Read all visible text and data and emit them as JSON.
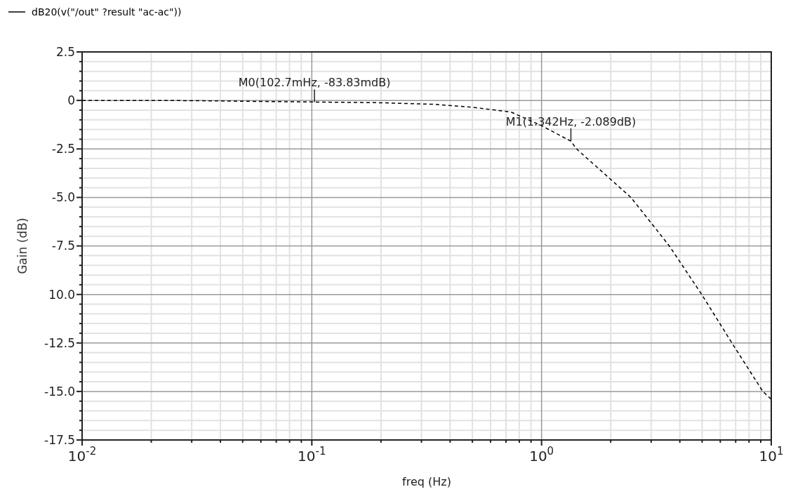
{
  "chart_data": {
    "type": "line",
    "xlabel": "freq (Hz)",
    "ylabel": "Gain  (dB)",
    "log": "x",
    "grid": true,
    "legend": "top left",
    "line_style": "dashed",
    "marker": "none",
    "xlim": [
      0.01,
      10
    ],
    "xticks": [
      {
        "value": 0.01,
        "label": "10$^{-2}$"
      },
      {
        "value": 0.1,
        "label": "10$^{-1}$"
      },
      {
        "value": 1,
        "label": "10$^{0}$"
      },
      {
        "value": 10,
        "label": "10$^{1}$"
      }
    ],
    "ylim": [
      -17.5,
      2.5
    ],
    "yticks": [
      {
        "value": 2.5,
        "label": "2.5"
      },
      0,
      {
        "value": -2.5,
        "label": "-2.5"
      },
      {
        "value": -5,
        "label": "-5.0"
      },
      {
        "value": -7.5,
        "label": "-7.5"
      },
      {
        "value": -10,
        "label": "10.0"
      },
      {
        "value": -12.5,
        "label": "-12.5"
      },
      {
        "value": -15,
        "label": "-15.0"
      },
      {
        "value": -17.5,
        "label": "-17.5"
      }
    ],
    "series": [
      {
        "name": "dB20(v(\"/out\" ?result \"ac-ac\"))",
        "color": "#000000",
        "x": [
          0.01,
          0.03,
          0.1,
          0.2,
          0.34,
          0.5,
          0.737,
          1,
          1.342,
          1.42,
          2.45,
          3.6,
          4.98,
          6.74,
          9.19,
          10
        ],
        "values": [
          0,
          -0.01,
          -0.08,
          -0.12,
          -0.2,
          -0.35,
          -0.6,
          -1.3,
          -2.1,
          -2.5,
          -5,
          -7.5,
          -10,
          -12.5,
          -15,
          -15.4
        ]
      }
    ],
    "annotations": [
      {
        "text": "M0(102.7mHz, -83.83mdB)",
        "x": 0.1027,
        "y": -0.084
      },
      {
        "text": "M1(1.342Hz, -2.089dB)",
        "x": 1.342,
        "y": -2.089
      }
    ]
  }
}
